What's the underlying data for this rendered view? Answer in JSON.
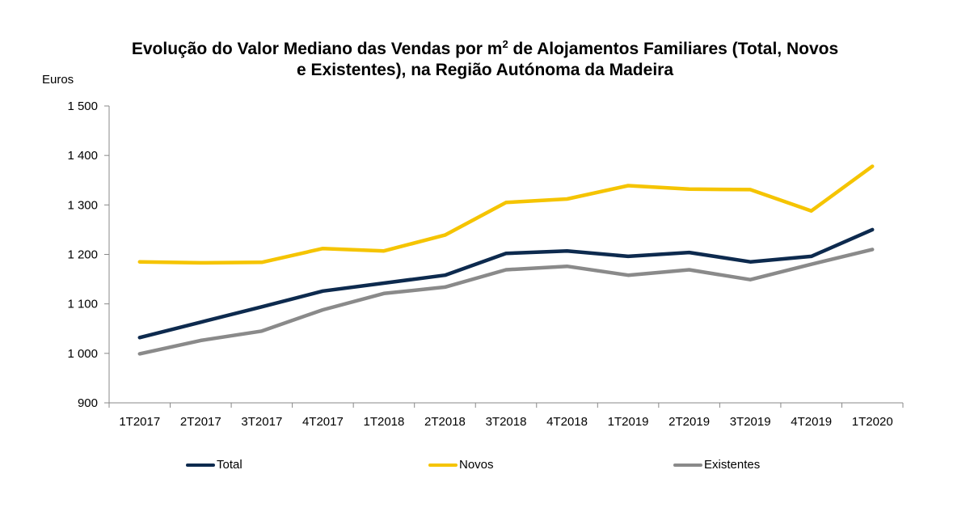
{
  "chart_data": {
    "type": "line",
    "title_main": "Evolução do Valor Mediano das Vendas por m",
    "title_sup": "2",
    "title_rest": " de Alojamentos Familiares (Total, Novos",
    "title_line2": "e Existentes), na Região Autónoma da Madeira",
    "ylabel": "Euros",
    "xlabel": "",
    "ylim": [
      900,
      1500
    ],
    "yticks": [
      900,
      1000,
      1100,
      1200,
      1300,
      1400,
      1500
    ],
    "ytick_labels": [
      "900",
      "1 000",
      "1 100",
      "1 200",
      "1 300",
      "1 400",
      "1 500"
    ],
    "categories": [
      "1T2017",
      "2T2017",
      "3T2017",
      "4T2017",
      "1T2018",
      "2T2018",
      "3T2018",
      "4T2018",
      "1T2019",
      "2T2019",
      "3T2019",
      "4T2019",
      "1T2020"
    ],
    "grid": false,
    "legend_position": "bottom",
    "series": [
      {
        "name": "Total",
        "color": "#0d2a4e",
        "values": [
          1032,
          1063,
          1094,
          1126,
          1142,
          1158,
          1202,
          1207,
          1196,
          1204,
          1185,
          1196,
          1250
        ]
      },
      {
        "name": "Novos",
        "color": "#f5c400",
        "values": [
          1185,
          1183,
          1184,
          1212,
          1207,
          1239,
          1305,
          1312,
          1339,
          1332,
          1331,
          1288,
          1378
        ]
      },
      {
        "name": "Existentes",
        "color": "#8a8a8a",
        "values": [
          999,
          1026,
          1045,
          1088,
          1121,
          1134,
          1169,
          1176,
          1158,
          1169,
          1149,
          1180,
          1210
        ]
      }
    ]
  }
}
